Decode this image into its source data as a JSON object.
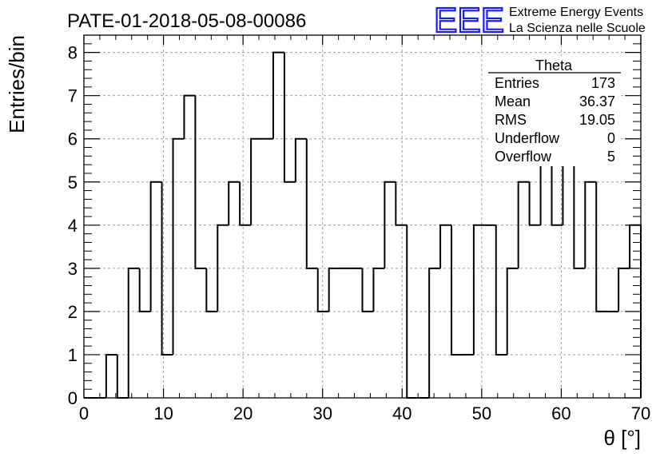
{
  "chart_data": {
    "type": "histogram",
    "title": "PATE-01-2018-05-08-00086",
    "xlabel": "θ [°]",
    "ylabel": "Entries/bin",
    "xlim": [
      0,
      70
    ],
    "ylim": [
      0,
      8.4
    ],
    "grid": true,
    "bin_width": 1.4,
    "x_ticks": [
      0,
      10,
      20,
      30,
      40,
      50,
      60,
      70
    ],
    "y_ticks": [
      0,
      1,
      2,
      3,
      4,
      5,
      6,
      7,
      8
    ],
    "bin_edges": [
      0,
      1.4,
      2.8,
      4.2,
      5.6,
      7.0,
      8.4,
      9.8,
      11.2,
      12.6,
      14.0,
      15.4,
      16.8,
      18.2,
      19.6,
      21.0,
      22.4,
      23.8,
      25.2,
      26.6,
      28.0,
      29.4,
      30.8,
      32.2,
      33.6,
      35.0,
      36.4,
      37.8,
      39.2,
      40.6,
      42.0,
      43.4,
      44.8,
      46.2,
      47.6,
      49.0,
      50.4,
      51.8,
      53.2,
      54.6,
      56.0,
      57.4,
      58.8,
      60.2,
      61.6,
      63.0,
      64.4,
      65.8,
      67.2,
      68.6,
      70.0
    ],
    "counts": [
      0,
      0,
      1,
      0,
      3,
      2,
      5,
      1,
      6,
      7,
      3,
      2,
      4,
      5,
      4,
      6,
      6,
      8,
      5,
      6,
      3,
      2,
      3,
      3,
      3,
      2,
      3,
      5,
      4,
      0,
      0,
      3,
      4,
      1,
      1,
      4,
      4,
      1,
      3,
      5,
      4,
      7,
      4,
      6,
      3,
      5,
      2,
      2,
      3,
      4
    ],
    "stats_box": {
      "title": "Theta",
      "rows": [
        {
          "label": "Entries",
          "value": "173"
        },
        {
          "label": "Mean",
          "value": "36.37"
        },
        {
          "label": "RMS",
          "value": "19.05"
        },
        {
          "label": "Underflow",
          "value": "0"
        },
        {
          "label": "Overflow",
          "value": "5"
        }
      ]
    },
    "logo": {
      "mark": "EEE",
      "line1": "Extreme Energy Events",
      "line2": "La Scienza nelle Scuole",
      "color": "#1a1aff"
    },
    "line_color": "#000000",
    "grid_color": "#a0a0a0"
  }
}
